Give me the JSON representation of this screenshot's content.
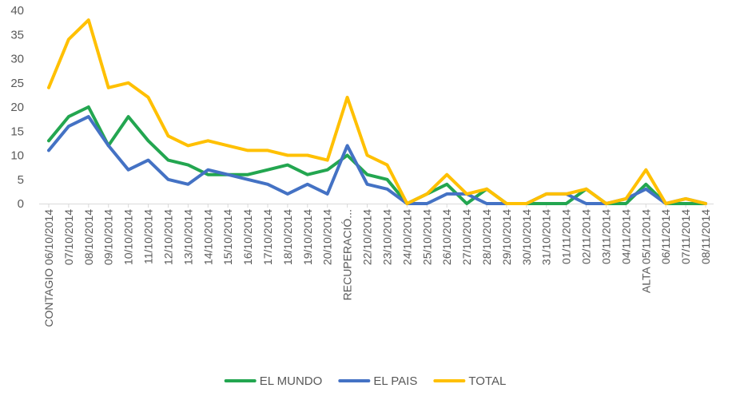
{
  "chart_data": {
    "type": "line",
    "title": "",
    "xlabel": "",
    "ylabel": "",
    "ylim": [
      0,
      40
    ],
    "yticks": [
      0,
      5,
      10,
      15,
      20,
      25,
      30,
      35,
      40
    ],
    "grid": false,
    "legend_position": "bottom",
    "categories": [
      "CONTAGIO 06/10/2014",
      "07/10/2014",
      "08/10/2014",
      "09/10/2014",
      "10/10/2014",
      "11/10/2014",
      "12/10/2014",
      "13/10/2014",
      "14/10/2014",
      "15/10/2014",
      "16/10/2014",
      "17/10/2014",
      "18/10/2014",
      "19/10/2014",
      "20/10/2014",
      "RECUPERACIÓ...",
      "22/10/2014",
      "23/10/2014",
      "24/10/2014",
      "25/10/2014",
      "26/10/2014",
      "27/10/2014",
      "28/10/2014",
      "29/10/2014",
      "30/10/2014",
      "31/10/2014",
      "01/11/2014",
      "02/11/2014",
      "03/11/2014",
      "04/11/2014",
      "ALTA 05/11/2014",
      "06/11/2014",
      "07/11/2014",
      "08/11/2014"
    ],
    "series": [
      {
        "name": "EL MUNDO",
        "color": "#23a650",
        "values": [
          13,
          18,
          20,
          12,
          18,
          13,
          9,
          8,
          6,
          6,
          6,
          7,
          8,
          6,
          7,
          10,
          6,
          5,
          0,
          2,
          4,
          0,
          3,
          0,
          0,
          0,
          0,
          3,
          0,
          0,
          4,
          0,
          0,
          0
        ]
      },
      {
        "name": "EL PAIS",
        "color": "#4472c4",
        "values": [
          11,
          16,
          18,
          12,
          7,
          9,
          5,
          4,
          7,
          6,
          5,
          4,
          2,
          4,
          2,
          12,
          4,
          3,
          0,
          0,
          2,
          2,
          0,
          0,
          0,
          2,
          2,
          0,
          0,
          1,
          3,
          0,
          1,
          0
        ]
      },
      {
        "name": "TOTAL",
        "color": "#ffc000",
        "values": [
          24,
          34,
          38,
          24,
          25,
          22,
          14,
          12,
          13,
          12,
          11,
          11,
          10,
          10,
          9,
          22,
          10,
          8,
          0,
          2,
          6,
          2,
          3,
          0,
          0,
          2,
          2,
          3,
          0,
          1,
          7,
          0,
          1,
          0
        ]
      }
    ]
  }
}
